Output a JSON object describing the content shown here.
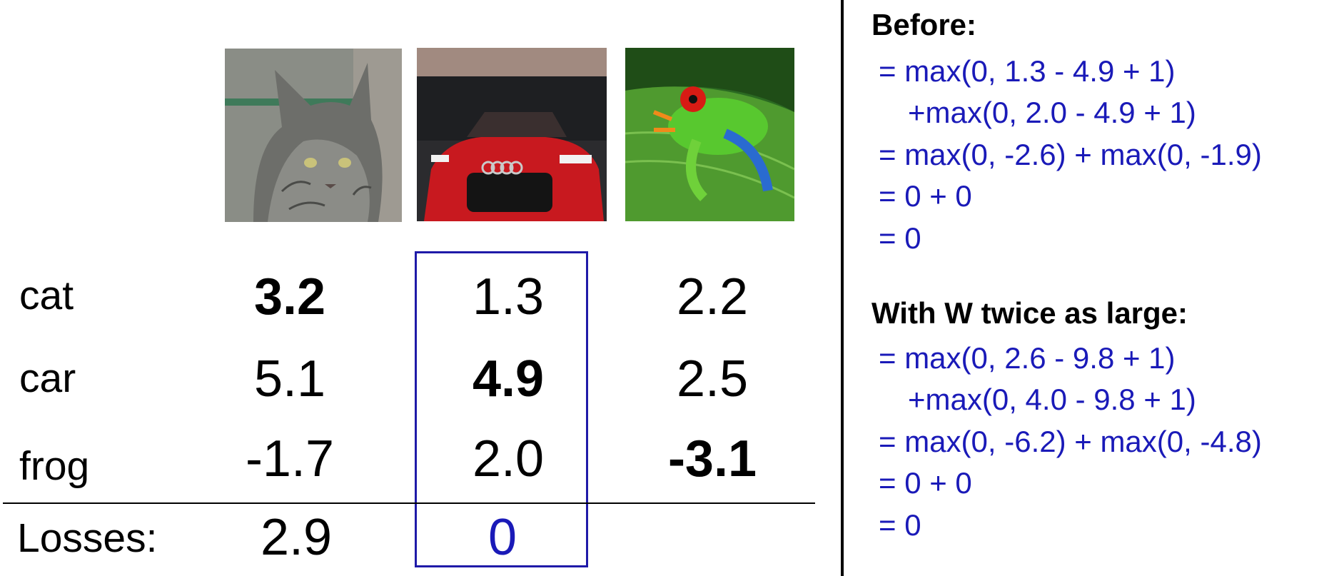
{
  "images": {
    "cat": "cat photo",
    "car": "red car photo",
    "frog": "tree frog photo"
  },
  "table": {
    "rows": [
      {
        "label": "cat",
        "values": [
          "3.2",
          "1.3",
          "2.2"
        ]
      },
      {
        "label": "car",
        "values": [
          "5.1",
          "4.9",
          "2.5"
        ]
      },
      {
        "label": "frog",
        "values": [
          "-1.7",
          "2.0",
          "-3.1"
        ]
      }
    ],
    "losses_label": "Losses:",
    "losses": [
      "2.9",
      "0",
      ""
    ]
  },
  "calc": {
    "before_title": "Before:",
    "before_lines": [
      "= max(0, 1.3 - 4.9 + 1)",
      "+max(0, 2.0 - 4.9 + 1)",
      "= max(0, -2.6) + max(0, -1.9)",
      "= 0 + 0",
      "= 0"
    ],
    "after_title": "With W twice as large:",
    "after_lines": [
      "= max(0, 2.6 - 9.8 + 1)",
      "+max(0, 4.0 - 9.8 + 1)",
      "= max(0, -6.2) + max(0, -4.8)",
      "= 0 + 0",
      "= 0"
    ]
  },
  "colors": {
    "highlight": "#1f1aa8",
    "math_text": "#1a1ab8"
  }
}
